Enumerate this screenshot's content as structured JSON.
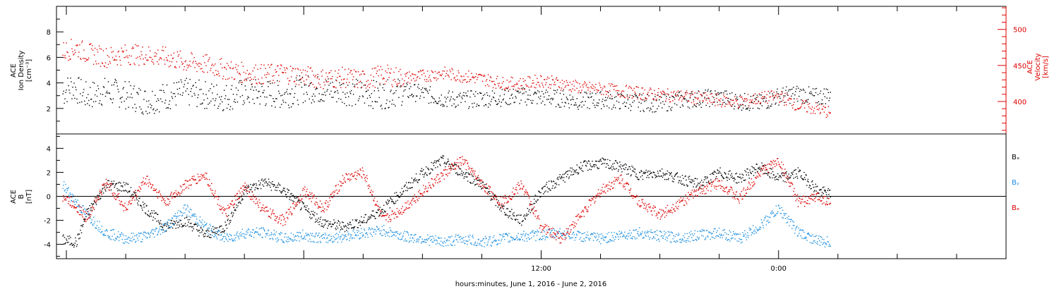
{
  "chart_data": [
    {
      "type": "scatter",
      "panel": "top",
      "ylabel_left": [
        "ACE",
        "Ion Density",
        "[cm⁻³]"
      ],
      "ylabel_right": [
        "ACE",
        "Velocity",
        "[km/s]"
      ],
      "ylim_left": [
        0,
        10
      ],
      "yticks_left": [
        2,
        4,
        6,
        8
      ],
      "ylim_right": [
        355,
        532
      ],
      "yticks_right": [
        400,
        450,
        500
      ],
      "xlim": [
        -12.5,
        35.5
      ],
      "series": [
        {
          "color": "#000000",
          "axis": "left",
          "points": [
            [
              -12.2,
              3.2
            ],
            [
              -11.8,
              3.8
            ],
            [
              -11,
              3
            ],
            [
              -10,
              3.4
            ],
            [
              -9,
              3.1
            ],
            [
              -8,
              2.6
            ],
            [
              -7,
              3
            ],
            [
              -6,
              3.3
            ],
            [
              -5,
              3.1
            ],
            [
              -4,
              2.9
            ],
            [
              -3,
              3.3
            ],
            [
              -2,
              3.2
            ],
            [
              -1,
              3.1
            ],
            [
              0,
              3.6
            ],
            [
              1,
              3.5
            ],
            [
              2,
              3.4
            ],
            [
              3,
              3.2
            ],
            [
              4,
              3.1
            ],
            [
              5,
              3.4
            ],
            [
              6,
              3.2
            ],
            [
              7,
              2.8
            ],
            [
              8,
              2.7
            ],
            [
              9,
              2.8
            ],
            [
              10,
              2.9
            ],
            [
              11,
              3
            ],
            [
              12,
              2.9
            ],
            [
              13,
              2.8
            ],
            [
              14,
              2.6
            ],
            [
              15,
              2.7
            ],
            [
              16,
              2.6
            ],
            [
              17,
              2.5
            ],
            [
              18,
              2.4
            ],
            [
              19,
              2.7
            ],
            [
              20,
              2.8
            ],
            [
              21,
              2.9
            ],
            [
              22,
              2.6
            ],
            [
              23,
              2.4
            ],
            [
              24,
              3
            ],
            [
              25,
              3.2
            ],
            [
              26,
              2.9
            ],
            [
              26.6,
              3.2
            ]
          ]
        },
        {
          "color": "#dd0000",
          "axis": "right",
          "points": [
            [
              -12.2,
              470
            ],
            [
              -11.5,
              475
            ],
            [
              -11,
              468
            ],
            [
              -10,
              462
            ],
            [
              -9,
              466
            ],
            [
              -8,
              465
            ],
            [
              -7,
              462
            ],
            [
              -6,
              455
            ],
            [
              -5,
              452
            ],
            [
              -4,
              445
            ],
            [
              -3,
              440
            ],
            [
              -2,
              438
            ],
            [
              -1,
              440
            ],
            [
              0,
              436
            ],
            [
              1,
              432
            ],
            [
              2,
              434
            ],
            [
              3,
              430
            ],
            [
              4,
              438
            ],
            [
              5,
              433
            ],
            [
              6,
              436
            ],
            [
              7,
              440
            ],
            [
              8,
              436
            ],
            [
              9,
              432
            ],
            [
              10,
              426
            ],
            [
              11,
              425
            ],
            [
              12,
              430
            ],
            [
              13,
              425
            ],
            [
              14,
              420
            ],
            [
              15,
              418
            ],
            [
              16,
              415
            ],
            [
              17,
              412
            ],
            [
              18,
              410
            ],
            [
              19,
              408
            ],
            [
              20,
              405
            ],
            [
              21,
              402
            ],
            [
              22,
              400
            ],
            [
              23,
              405
            ],
            [
              24,
              408
            ],
            [
              25,
              395
            ],
            [
              26,
              390
            ],
            [
              26.6,
              385
            ]
          ]
        }
      ]
    },
    {
      "type": "scatter",
      "panel": "bottom",
      "ylabel": [
        "ACE",
        "B",
        "[nT]"
      ],
      "ylim": [
        -5.2,
        5.2
      ],
      "yticks": [
        -4,
        -2,
        0,
        2,
        4
      ],
      "xlim": [
        -12.5,
        35.5
      ],
      "x_ticklabels": [
        {
          "x": 12,
          "label": "12:00"
        },
        {
          "x": 24,
          "label": "0:00"
        }
      ],
      "xlabel": "hours:minutes, June  1, 2016 - June  2, 2016",
      "legend": [
        "Bₓ",
        "Bᵧ",
        "Bₔ"
      ],
      "series": [
        {
          "name": "Bx",
          "color": "#000000",
          "points": [
            [
              -12.2,
              -3.6
            ],
            [
              -11.5,
              -3.8
            ],
            [
              -11,
              -1.5
            ],
            [
              -10,
              1
            ],
            [
              -9,
              0.8
            ],
            [
              -8,
              -1
            ],
            [
              -7,
              -2.5
            ],
            [
              -6,
              -2
            ],
            [
              -5,
              -3.2
            ],
            [
              -4,
              -2.5
            ],
            [
              -3,
              0.5
            ],
            [
              -2,
              1.2
            ],
            [
              -1,
              0.5
            ],
            [
              0,
              -1
            ],
            [
              1,
              -2.2
            ],
            [
              2,
              -2.5
            ],
            [
              3,
              -2
            ],
            [
              4,
              -1
            ],
            [
              5,
              0.5
            ],
            [
              6,
              2
            ],
            [
              7,
              3
            ],
            [
              8,
              2
            ],
            [
              9,
              1
            ],
            [
              10,
              -1
            ],
            [
              11,
              -2
            ],
            [
              12,
              0.5
            ],
            [
              13,
              1.5
            ],
            [
              14,
              2.5
            ],
            [
              15,
              2.8
            ],
            [
              16,
              2.5
            ],
            [
              17,
              1.8
            ],
            [
              18,
              2
            ],
            [
              19,
              1.5
            ],
            [
              20,
              1
            ],
            [
              21,
              2
            ],
            [
              22,
              1.5
            ],
            [
              23,
              2.5
            ],
            [
              24,
              1.5
            ],
            [
              25,
              2
            ],
            [
              26,
              0.5
            ],
            [
              26.6,
              0.2
            ]
          ]
        },
        {
          "name": "By",
          "color": "#1e90e0",
          "points": [
            [
              -12.2,
              1
            ],
            [
              -11.5,
              -0.5
            ],
            [
              -11,
              -1.5
            ],
            [
              -10,
              -3
            ],
            [
              -9,
              -3.5
            ],
            [
              -8,
              -3.3
            ],
            [
              -7,
              -2.5
            ],
            [
              -6,
              -1
            ],
            [
              -5,
              -2.5
            ],
            [
              -4,
              -3.5
            ],
            [
              -3,
              -3
            ],
            [
              -2,
              -3
            ],
            [
              -1,
              -3.5
            ],
            [
              0,
              -3.2
            ],
            [
              1,
              -3.5
            ],
            [
              2,
              -3.3
            ],
            [
              3,
              -3
            ],
            [
              4,
              -2.8
            ],
            [
              5,
              -3.3
            ],
            [
              6,
              -3.5
            ],
            [
              7,
              -3.8
            ],
            [
              8,
              -3.5
            ],
            [
              9,
              -3.8
            ],
            [
              10,
              -3.5
            ],
            [
              11,
              -3.3
            ],
            [
              12,
              -3.2
            ],
            [
              13,
              -3
            ],
            [
              14,
              -3.3
            ],
            [
              15,
              -3.5
            ],
            [
              16,
              -3.2
            ],
            [
              17,
              -3
            ],
            [
              18,
              -3.3
            ],
            [
              19,
              -3.4
            ],
            [
              20,
              -3.2
            ],
            [
              21,
              -3
            ],
            [
              22,
              -3.5
            ],
            [
              23,
              -2.5
            ],
            [
              24,
              -1
            ],
            [
              25,
              -3
            ],
            [
              26,
              -3.7
            ],
            [
              26.6,
              -3.8
            ]
          ]
        },
        {
          "name": "Bz",
          "color": "#dd0000",
          "points": [
            [
              -12.2,
              0
            ],
            [
              -11.5,
              -0.8
            ],
            [
              -11,
              -1.8
            ],
            [
              -10,
              1.2
            ],
            [
              -9,
              -1
            ],
            [
              -8,
              1.5
            ],
            [
              -7,
              -0.5
            ],
            [
              -6,
              1
            ],
            [
              -5,
              1.8
            ],
            [
              -4,
              -1.5
            ],
            [
              -3,
              0.8
            ],
            [
              -2,
              -1.2
            ],
            [
              -1,
              -2
            ],
            [
              0,
              0.5
            ],
            [
              1,
              -1
            ],
            [
              2,
              1.5
            ],
            [
              3,
              2
            ],
            [
              4,
              -2
            ],
            [
              5,
              -1
            ],
            [
              6,
              0.5
            ],
            [
              7,
              1.8
            ],
            [
              8,
              3
            ],
            [
              9,
              1
            ],
            [
              10,
              -0.5
            ],
            [
              11,
              1
            ],
            [
              12,
              -2.5
            ],
            [
              13,
              -3.5
            ],
            [
              14,
              -1.5
            ],
            [
              15,
              0.5
            ],
            [
              16,
              1.5
            ],
            [
              17,
              -0.5
            ],
            [
              18,
              -1.5
            ],
            [
              19,
              -0.5
            ],
            [
              20,
              0.5
            ],
            [
              21,
              1.2
            ],
            [
              22,
              -0.2
            ],
            [
              23,
              2
            ],
            [
              24,
              3
            ],
            [
              25,
              -0.5
            ],
            [
              26,
              0
            ],
            [
              26.6,
              -0.5
            ]
          ]
        }
      ]
    }
  ]
}
